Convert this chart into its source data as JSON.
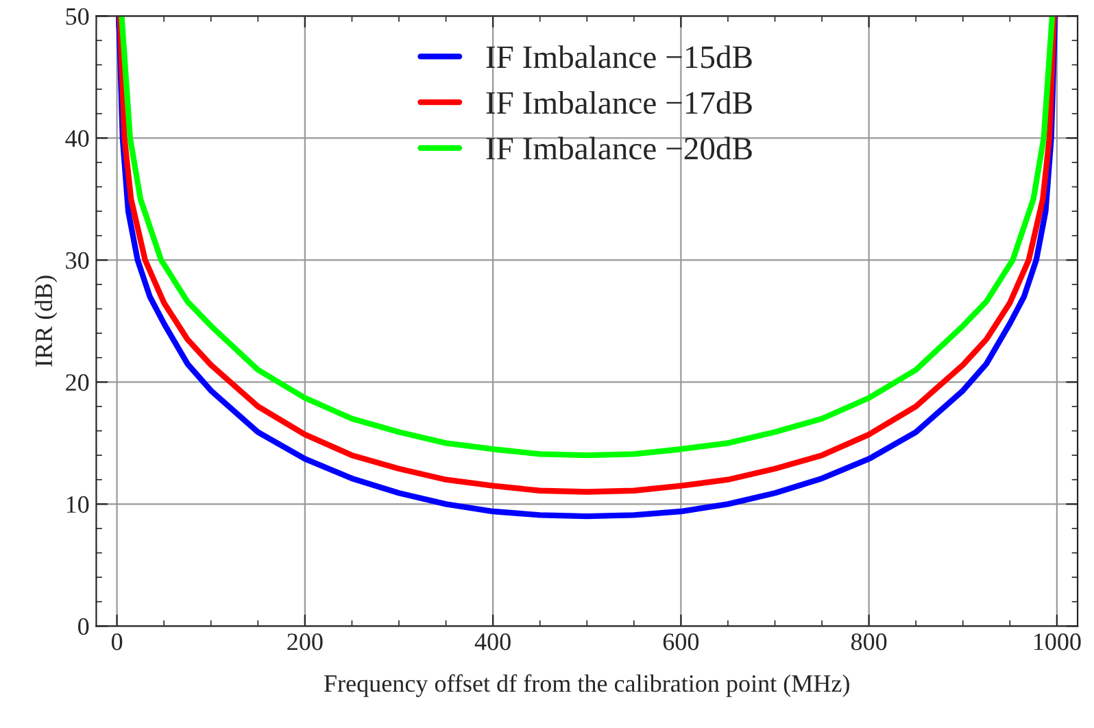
{
  "chart_data": {
    "type": "line",
    "xlabel": "Frequency offset df from the calibration point (MHz)",
    "ylabel": "IRR (dB)",
    "xlim": [
      -22,
      1022
    ],
    "xticks": [
      0,
      200,
      400,
      600,
      800,
      1000
    ],
    "ylim": [
      0,
      50
    ],
    "yticks": [
      0,
      10,
      20,
      30,
      40,
      50
    ],
    "grid": true,
    "legend": "top",
    "marker": "none",
    "line_style": "solid",
    "series": [
      {
        "name": "IF Imbalance −15dB",
        "color": "#0000ff",
        "x": [
          2,
          6,
          12,
          22,
          35,
          50,
          75,
          100,
          150,
          200,
          250,
          300,
          350,
          400,
          450,
          500,
          550,
          600,
          650,
          700,
          750,
          800,
          850,
          900,
          925,
          950,
          965,
          978,
          988,
          994,
          998
        ],
        "values": [
          50,
          40,
          34,
          30,
          27,
          24.8,
          21.5,
          19.3,
          15.9,
          13.7,
          12.1,
          10.9,
          10.0,
          9.4,
          9.1,
          9.0,
          9.1,
          9.4,
          10.0,
          10.9,
          12.1,
          13.7,
          15.9,
          19.3,
          21.5,
          24.8,
          27,
          30,
          34,
          40,
          50
        ]
      },
      {
        "name": "IF Imbalance −17dB",
        "color": "#ff0000",
        "x": [
          3,
          8,
          15,
          30,
          50,
          75,
          100,
          150,
          200,
          250,
          300,
          350,
          400,
          450,
          500,
          550,
          600,
          650,
          700,
          750,
          800,
          850,
          900,
          925,
          950,
          970,
          985,
          992,
          997
        ],
        "values": [
          50,
          40,
          35,
          30,
          26.5,
          23.5,
          21.4,
          18.0,
          15.7,
          14.0,
          12.9,
          12.0,
          11.5,
          11.1,
          11.0,
          11.1,
          11.5,
          12.0,
          12.9,
          14.0,
          15.7,
          18.0,
          21.4,
          23.5,
          26.5,
          30,
          35,
          40,
          50
        ]
      },
      {
        "name": "IF Imbalance −20dB",
        "color": "#00ff00",
        "x": [
          5,
          14,
          25,
          47,
          75,
          100,
          150,
          200,
          250,
          300,
          350,
          400,
          450,
          500,
          550,
          600,
          650,
          700,
          750,
          800,
          850,
          900,
          925,
          953,
          975,
          986,
          995
        ],
        "values": [
          50,
          40,
          35,
          30,
          26.6,
          24.6,
          21.0,
          18.7,
          17.0,
          15.9,
          15.0,
          14.5,
          14.1,
          14.0,
          14.1,
          14.5,
          15.0,
          15.9,
          17.0,
          18.7,
          21.0,
          24.6,
          26.6,
          30,
          35,
          40,
          50
        ]
      }
    ]
  }
}
